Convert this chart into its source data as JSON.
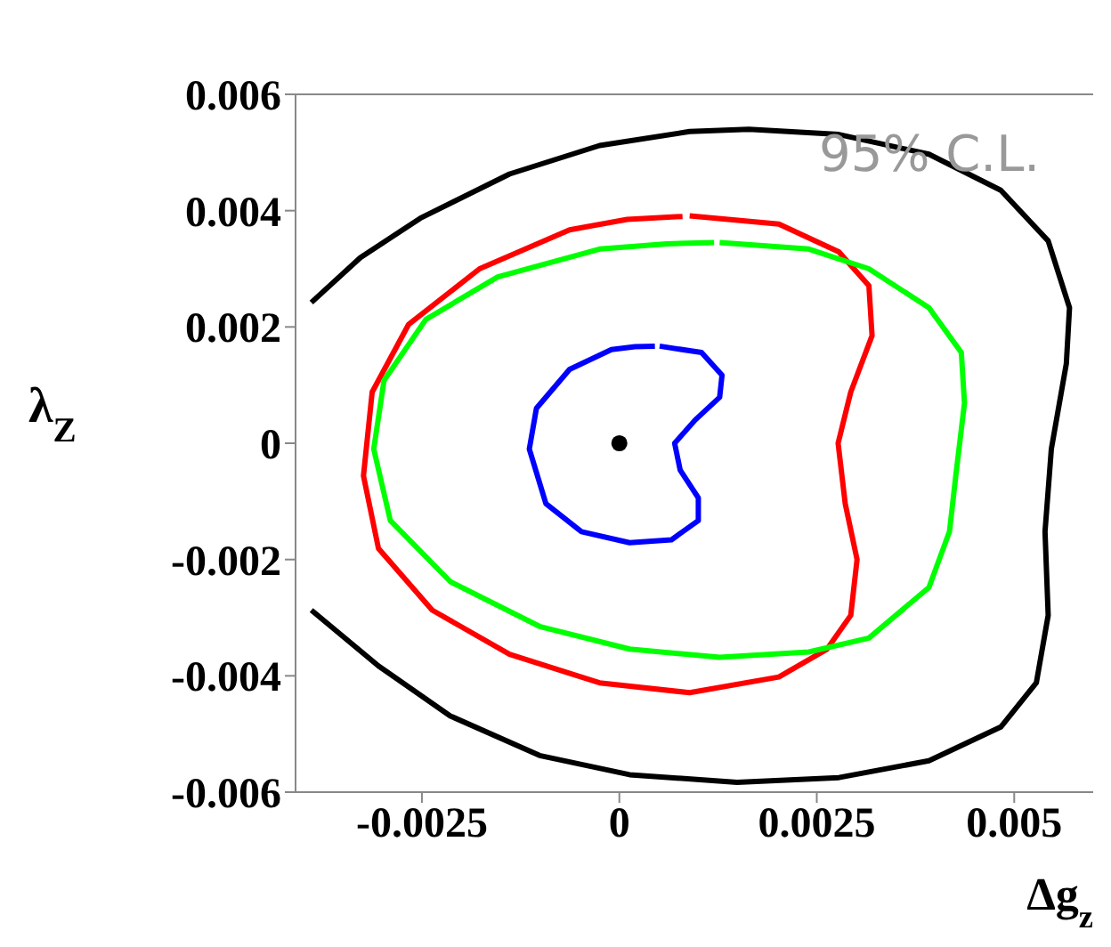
{
  "chart_data": {
    "type": "line",
    "xlabel": "Δg$_{z}$",
    "ylabel": "λ$_{Z}$",
    "xlim": [
      -0.0041,
      0.006
    ],
    "ylim": [
      -0.006,
      0.006
    ],
    "xticks": [
      -0.0025,
      0,
      0.0025,
      0.005
    ],
    "yticks": [
      -0.006,
      -0.004,
      -0.002,
      0,
      0.002,
      0.004,
      0.006
    ],
    "annotations": [
      "95% C.L."
    ],
    "marker": "none",
    "series": [
      {
        "color": "#000000",
        "x": [
          -0.0039,
          -0.00328,
          -0.00252,
          -0.00139,
          -0.00025,
          0.00089,
          0.00164,
          0.00278,
          0.00392,
          0.00483,
          0.00543,
          0.0057,
          0.00566,
          0.00547,
          0.00539,
          0.00543,
          0.00528,
          0.00483,
          0.00392,
          0.00278,
          0.00149,
          0.00013,
          -0.00101,
          -0.00214,
          -0.00305,
          -0.0039
        ],
        "values": [
          0.00242,
          0.00319,
          0.00387,
          0.00463,
          0.00512,
          0.00536,
          0.0054,
          0.00531,
          0.00497,
          0.00435,
          0.00348,
          0.00233,
          0.00137,
          -0.0001,
          -0.00152,
          -0.00296,
          -0.00412,
          -0.00488,
          -0.00546,
          -0.00575,
          -0.00583,
          -0.0057,
          -0.00537,
          -0.00469,
          -0.00383,
          -0.00287
        ]
      },
      {
        "color": "#ff0000",
        "x": [
          0.00089,
          0.00202,
          0.00278,
          0.00316,
          0.0032,
          0.00293,
          0.00277,
          0.00286,
          0.00301,
          0.00293,
          0.00263,
          0.00202,
          0.00089,
          -0.00025,
          -0.00139,
          -0.00237,
          -0.00305,
          -0.00324,
          -0.00313,
          -0.00267,
          -0.00177,
          -0.00063,
          0.0001,
          0.0008
        ],
        "values": [
          0.00391,
          0.00377,
          0.00329,
          0.00271,
          0.00185,
          0.00088,
          0,
          -0.00104,
          -0.002,
          -0.00296,
          -0.00354,
          -0.00402,
          -0.00429,
          -0.00412,
          -0.00363,
          -0.00287,
          -0.00181,
          -0.00056,
          0.00088,
          0.00204,
          0.003,
          0.00367,
          0.00385,
          0.0039
        ]
      },
      {
        "color": "#00ff00",
        "x": [
          0.00127,
          0.0024,
          0.00316,
          0.00392,
          0.00433,
          0.00437,
          0.00426,
          0.00418,
          0.00392,
          0.00316,
          0.0024,
          0.00127,
          0.00013,
          -0.00101,
          -0.00214,
          -0.0029,
          -0.00311,
          -0.00298,
          -0.00245,
          -0.00154,
          -0.00025,
          0.0006,
          0.0012
        ],
        "values": [
          0.00345,
          0.00334,
          0.003,
          0.00233,
          0.00156,
          0.00069,
          -0.00056,
          -0.00152,
          -0.00248,
          -0.00335,
          -0.00359,
          -0.00368,
          -0.00354,
          -0.00315,
          -0.00238,
          -0.00133,
          -0.0001,
          0.00108,
          0.00213,
          0.00286,
          0.00334,
          0.00343,
          0.00345
        ]
      },
      {
        "color": "#0000ff",
        "x": [
          0.00051,
          0.00104,
          0.0013,
          0.00127,
          0.00096,
          0.0007,
          0.00077,
          0.001,
          0.001,
          0.00066,
          0.00013,
          -0.00048,
          -0.00093,
          -0.00114,
          -0.00105,
          -0.00063,
          -0.0001,
          0.0002,
          0.00045
        ],
        "values": [
          0.00167,
          0.00156,
          0.00117,
          0.00079,
          0.0004,
          0,
          -0.00046,
          -0.00094,
          -0.00133,
          -0.00166,
          -0.00171,
          -0.00152,
          -0.00104,
          -0.0001,
          0.0006,
          0.00127,
          0.00161,
          0.00166,
          0.00167
        ]
      },
      {
        "type": "scatter",
        "color": "#000000",
        "marker": "circle",
        "x": [
          0
        ],
        "values": [
          0
        ]
      }
    ]
  }
}
